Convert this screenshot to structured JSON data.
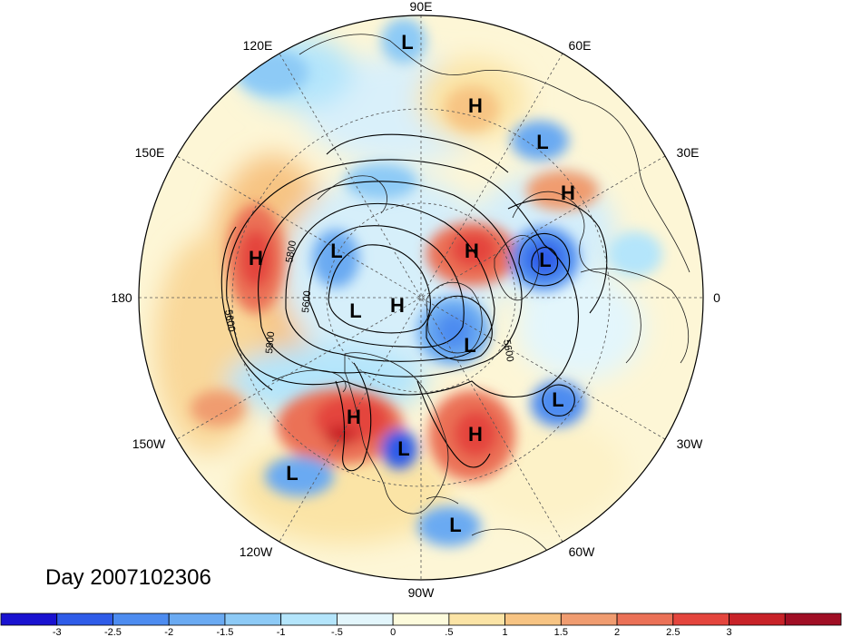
{
  "title": "Day 2007102306",
  "longitude_labels": [
    "90E",
    "60E",
    "30E",
    "0",
    "30W",
    "60W",
    "90W",
    "120W",
    "150W",
    "180",
    "150E",
    "120E"
  ],
  "pressure_centers": [
    {
      "label": "L",
      "name": "low-center-siberia-north"
    },
    {
      "label": "H",
      "name": "high-center-siberia"
    },
    {
      "label": "L",
      "name": "low-center-urals"
    },
    {
      "label": "H",
      "name": "high-center-europe-east"
    },
    {
      "label": "H",
      "name": "high-center-scandinavia"
    },
    {
      "label": "L",
      "name": "low-center-north-atlantic"
    },
    {
      "label": "H",
      "name": "high-center-pacific"
    },
    {
      "label": "L",
      "name": "low-center-beaufort"
    },
    {
      "label": "H",
      "name": "high-center-pole"
    },
    {
      "label": "L",
      "name": "low-center-canada-west"
    },
    {
      "label": "L",
      "name": "low-center-greenland"
    },
    {
      "label": "L",
      "name": "low-center-atlantic-mid"
    },
    {
      "label": "H",
      "name": "high-center-west-north-america"
    },
    {
      "label": "L",
      "name": "low-center-great-lakes"
    },
    {
      "label": "H",
      "name": "high-center-west-atlantic"
    },
    {
      "label": "L",
      "name": "low-center-east-pacific"
    },
    {
      "label": "L",
      "name": "low-center-caribbean"
    }
  ],
  "contour_labels": [
    "5800",
    "5600",
    "5800",
    "5600",
    "5600",
    "5800"
  ],
  "colorbar": {
    "colors": [
      "#1a12d0",
      "#2f5ce8",
      "#4d8cf0",
      "#6aaaf2",
      "#8dcaf6",
      "#b4e5fb",
      "#e3f6fc",
      "#fdfbdc",
      "#fbe4a6",
      "#f7c483",
      "#f09c70",
      "#eb7157",
      "#e4453d",
      "#c82228",
      "#a00e24"
    ],
    "ticks": [
      "-3",
      "-2.5",
      "-2",
      "-1.5",
      "-1",
      "-.5",
      "0",
      ".5",
      "1",
      "1.5",
      "2",
      "2.5",
      "3"
    ]
  }
}
